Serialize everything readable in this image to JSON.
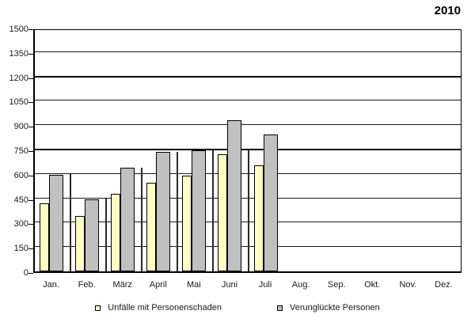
{
  "chart_data": {
    "type": "bar",
    "title": "2010",
    "categories": [
      "Jan.",
      "Feb.",
      "März",
      "April",
      "Mai",
      "Juni",
      "Juli",
      "Aug.",
      "Sep.",
      "Okt.",
      "Nov.",
      "Dez."
    ],
    "series": [
      {
        "name": "Unfälle mit Personenschaden",
        "color": "#ffffc2",
        "values": [
          420,
          340,
          475,
          545,
          590,
          720,
          655,
          null,
          null,
          null,
          null,
          null
        ]
      },
      {
        "name": "Verunglückte Personen",
        "color": "#c0c0c0",
        "values": [
          595,
          445,
          640,
          735,
          745,
          930,
          845,
          null,
          null,
          null,
          null,
          null
        ]
      }
    ],
    "xlabel": "",
    "ylabel": "",
    "ylim": [
      0,
      1500
    ],
    "yticks": [
      0,
      150,
      300,
      450,
      600,
      750,
      900,
      1050,
      1200,
      1350,
      1500
    ],
    "bold_gridlines": [
      750,
      1200
    ],
    "grid": "horizontal",
    "legend_position": "bottom",
    "group_separators": [
      {
        "after_index": 0,
        "top": 600
      },
      {
        "after_index": 1,
        "top": 450
      },
      {
        "after_index": 2,
        "top": 640
      },
      {
        "after_index": 3,
        "top": 735
      },
      {
        "after_index": 4,
        "top": 745
      },
      {
        "after_index": 5,
        "top": 750
      }
    ],
    "axis_color": "#000000",
    "background": "#ffffff"
  }
}
